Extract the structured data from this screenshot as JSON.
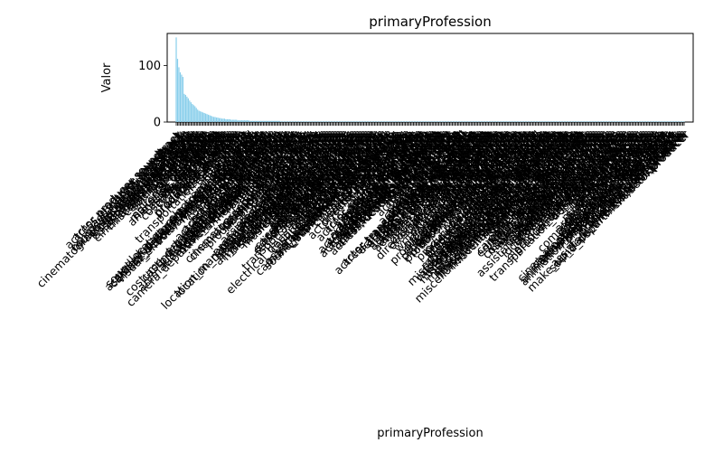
{
  "chart_data": {
    "type": "bar",
    "title": "primaryProfession",
    "xlabel": "primaryProfession",
    "ylabel": "Valor",
    "ylim": [
      0,
      157
    ],
    "yticks": [
      0,
      100
    ],
    "bar_color": "#87ceeb",
    "categories": [
      "actor,producer,soundtrack",
      "actress,producer,soundtrack",
      "actor,soundtrack",
      "actress,soundtrack",
      "actor,producer,director",
      "actor",
      "actress",
      "composer,music_department",
      "music_department,composer",
      "cinematographer,camera_department",
      "cinematographer,director",
      "cinematographer,editor",
      "cinematographer",
      "location_management",
      "assistant_director,director",
      "assistant_director",
      "music_department",
      "cinematographer,producer",
      "miscellaneous,producer",
      "producer",
      "camera_department",
      "sound_department",
      "visual_effects",
      "miscellaneous",
      "actor,director",
      "actress,director",
      "composer",
      "editor",
      "editorial_department",
      "make_up_department",
      "assistant",
      "animation_department",
      "art_department",
      "art_director",
      "casting_department",
      "casting_director",
      "costume_department",
      "costume_designer",
      "director",
      "director,writer",
      "producer,writer",
      "writer",
      "writer,producer",
      "production_designer",
      "production_manager",
      "script_department",
      "set_decorator",
      "special_effects",
      "stunts",
      "transportation_department",
      "talent_agent",
      "publicist",
      "executive",
      "manager",
      "legal",
      "music_artist",
      "soundtrack",
      "archive_footage",
      "electrical_department",
      "location_management,producer",
      "sound_department,music_department",
      "make_up_department,miscellaneous",
      "assistant_director,production_manager",
      "camera_department,cinematographer",
      "editor,editorial_department",
      "visual_effects,animation_department",
      "miscellaneous,actor",
      "miscellaneous,actress",
      "producer,director",
      "director,producer",
      "writer,director",
      "composer,soundtrack",
      "actor,writer",
      "actress,writer",
      "actor,miscellaneous",
      "actress,miscellaneous",
      "actor,music_department",
      "actress,music_department",
      "stunts,actor",
      "stunts,actress",
      "art_department,set_decorator",
      "costume_department,costume_designer",
      "casting_director,casting_department",
      "production_designer,art_director",
      "special_effects,visual_effects",
      "script_department,writer",
      "editorial_department,editor",
      "animation_department,art_department",
      "sound_department,composer",
      "music_department,soundtrack",
      "camera_department,electrical_department",
      "producer,executive",
      "manager,talent_agent",
      "publicist,executive",
      "legal,executive",
      "director,actor",
      "director,actress",
      "writer,actor",
      "writer,actress",
      "soundtrack,actor",
      "soundtrack,actress",
      "cinematographer,miscellaneous",
      "cinematographer,visual_effects",
      "cinematographer,writer",
      "producer,miscellaneous",
      "producer,music_department",
      "producer,soundtrack",
      "editor,director",
      "editor,producer",
      "editor,writer",
      "composer,actor",
      "composer,director",
      "composer,producer",
      "assistant_director,producer",
      "assistant_director,writer",
      "assistant_director,actor",
      "production_manager,producer",
      "production_manager,director",
      "location_management,production_manager",
      "location_management,assistant_director",
      "visual_effects,director",
      "visual_effects,producer",
      "animation_department,director",
      "animation_department,writer",
      "art_department,director",
      "art_director,production_designer",
      "make_up_department,actress",
      "make_up_department,producer",
      "costume_designer,actress",
      "sound_department,producer",
      "sound_department,director",
      "music_department,actor",
      "music_department,producer",
      "miscellaneous,writer",
      "miscellaneous,director",
      "actor,producer,writer",
      "actress,producer,writer",
      "actor,director,writer",
      "actress,director,writer",
      "director,writer,producer",
      "producer,director,writer",
      "writer,producer,director",
      "camera_department,actor",
      "camera_department,director",
      "editorial_department,director",
      "script_department,director",
      "set_decorator,art_department",
      "special_effects,director",
      "stunts,director",
      "transportation_department,stunts",
      "talent_agent,producer",
      "executive,producer",
      "soundtrack,composer",
      "archive_footage,actor",
      "archive_footage,actress",
      "electrical_department,cinematographer",
      "assistant,producer",
      "casting_department,producer",
      "music_artist,soundtrack",
      "actor,archive_footage",
      "actress,archive_footage",
      "make_up_department,actor",
      "assistant_director,miscellaneous",
      "camera_department,miscellaneous",
      "art_department,miscellaneous",
      "sound_department,miscellaneous",
      "visual_effects,miscellaneous",
      "producer,actor",
      "producer,actress",
      "cinematographer,actor",
      "composer,writer",
      "editor,actor",
      "editor,miscellaneous",
      "writer,miscellaneous",
      "director,miscellaneous",
      "actor,camera_department",
      "actor,stunts",
      "actress,stunts",
      "actor,composer",
      "actress,composer",
      "actor,editor",
      "actress,editor",
      "actor,sound_department",
      "actress,sound_department",
      "actor,visual_effects",
      "actress,visual_effects",
      "actor,art_department",
      "actress,art_department",
      "actor,casting_director",
      "actress,casting_director",
      "actor,costume_designer",
      "actress,costume_designer",
      "actor,make_up_department",
      "actress,make_up_department",
      "actor,script_department",
      "actress,script_department",
      "actor,animation_department",
      "actress,animation_department",
      "actor,assistant_director",
      "actress,assistant_director",
      "actor,production_manager",
      "actress,production_manager",
      "actor,location_management",
      "actress,location_management",
      "actor,executive",
      "actress,executive",
      "actor,manager",
      "actress,manager",
      "actor,talent_agent",
      "actress,talent_agent",
      "actor,publicist",
      "actress,publicist",
      "actor,legal",
      "actress,legal",
      "actor,music_artist",
      "actress,music_artist",
      "actor,special_effects",
      "actress,special_effects",
      "actor,set_decorator",
      "actress,set_decorator",
      "actor,transportation_department",
      "actress,transportation_department",
      "actor,electrical_department",
      "actress,electrical_department",
      "actor,production_designer",
      "actress,production_designer",
      "actor,art_director",
      "actress,art_director",
      "actor,editorial_department",
      "actress,editorial_department",
      "actor,casting_department",
      "actress,casting_department",
      "actor,costume_department",
      "actress,costume_department",
      "actor,assistant",
      "actress,assistant",
      "director,cinematographer",
      "director,editor",
      "director,composer",
      "director,sound_department",
      "director,visual_effects",
      "director,animation_department",
      "director,art_department",
      "director,camera_department",
      "writer,editor",
      "writer,composer",
      "writer,cinematographer",
      "writer,sound_department",
      "writer,visual_effects",
      "writer,animation_department",
      "producer,editor",
      "producer,composer",
      "producer,cinematographer",
      "producer,sound_department",
      "producer,visual_effects",
      "producer,animation_department",
      "producer,art_department",
      "producer,camera_department",
      "producer,casting_director",
      "producer,costume_designer",
      "producer,make_up_department",
      "producer,script_department",
      "producer,assistant_director",
      "producer,production_manager",
      "producer,location_management",
      "producer,manager",
      "producer,talent_agent",
      "producer,publicist",
      "producer,legal",
      "producer,stunts",
      "producer,special_effects",
      "producer,set_decorator",
      "producer,electrical_department",
      "producer,production_designer",
      "producer,art_director",
      "producer,editorial_department",
      "producer,casting_department",
      "producer,costume_department",
      "producer,assistant",
      "miscellaneous,editor",
      "miscellaneous,composer",
      "miscellaneous,cinematographer",
      "miscellaneous,sound_department",
      "miscellaneous,visual_effects",
      "miscellaneous,animation_department",
      "miscellaneous,art_department",
      "miscellaneous,camera_department",
      "miscellaneous,make_up_department",
      "miscellaneous,script_department",
      "miscellaneous,assistant_director",
      "miscellaneous,production_manager",
      "miscellaneous,location_management",
      "miscellaneous,stunts",
      "miscellaneous,special_effects",
      "miscellaneous,set_decorator",
      "miscellaneous,electrical_department",
      "miscellaneous,production_designer",
      "miscellaneous,art_director",
      "miscellaneous,editorial_department",
      "miscellaneous,casting_department",
      "miscellaneous,costume_department",
      "miscellaneous,assistant",
      "miscellaneous,transportation_department",
      "miscellaneous,music_department",
      "miscellaneous,soundtrack",
      "sound_department,actor",
      "sound_department,editor",
      "sound_department,writer",
      "visual_effects,actor",
      "visual_effects,editor",
      "visual_effects,writer",
      "camera_department,editor",
      "camera_department,producer",
      "camera_department,writer",
      "editorial_department,producer",
      "editorial_department,writer",
      "art_department,producer",
      "art_department,writer",
      "art_department,actor",
      "costume_department,actress",
      "costume_department,producer",
      "make_up_department,director",
      "make_up_department,writer",
      "script_department,producer",
      "script_department,actor",
      "casting_director,producer",
      "casting_director,actress",
      "casting_department,actress",
      "assistant_director,editor",
      "assistant_director,cinematographer",
      "production_manager,writer",
      "production_manager,actor",
      "location_management,actor",
      "location_management,director",
      "stunts,producer",
      "stunts,miscellaneous",
      "special_effects,producer",
      "special_effects,actor",
      "set_decorator,producer",
      "electrical_department,producer",
      "production_designer,producer",
      "art_director,producer",
      "transportation_department,producer",
      "assistant,actor",
      "assistant,actress",
      "executive,writer",
      "manager,producer",
      "talent_agent,actor",
      "publicist,producer",
      "legal,producer",
      "music_artist,actor",
      "music_artist,producer",
      "soundtrack,producer",
      "soundtrack,writer",
      "archive_footage,director",
      "archive_footage,writer",
      "composer,sound_department",
      "composer,editor",
      "composer,miscellaneous",
      "editor,sound_department",
      "editor,visual_effects",
      "editor,cinematographer",
      "editor,camera_department",
      "cinematographer,sound_department",
      "cinematographer,art_department",
      "animation_department,producer",
      "animation_department,visual_effects",
      "animation_department,actor",
      "animation_department,miscellaneous",
      "director,music_department",
      "director,soundtrack",
      "writer,music_department",
      "writer,soundtrack",
      "producer,actor,director",
      "producer,actress,director",
      "director,producer,actor",
      "writer,actor,producer",
      "assistant_director,actor,producer",
      "make_up_department,actress,producer",
      "sound_department,actor,producer"
    ],
    "values": [
      150,
      112,
      97,
      88,
      84,
      80,
      50,
      48,
      45,
      42,
      38,
      35,
      32,
      30,
      28,
      25,
      22,
      20,
      19,
      18,
      17,
      16,
      15,
      14,
      13,
      12,
      11,
      10,
      9,
      9,
      8,
      8,
      7,
      7,
      6,
      6,
      6,
      5,
      5,
      5,
      5,
      4,
      4,
      4,
      4,
      4,
      3,
      3,
      3,
      3,
      3,
      3,
      3,
      3,
      3,
      2,
      2,
      2,
      2,
      2,
      2,
      2,
      2,
      2,
      2,
      2,
      2,
      2,
      2,
      2,
      2,
      2,
      2,
      2,
      2,
      2,
      2,
      2,
      1,
      1,
      1,
      1,
      1,
      1,
      1,
      1,
      1,
      1,
      1,
      1,
      1,
      1,
      1,
      1,
      1,
      1,
      1,
      1,
      1,
      1,
      1,
      1,
      1,
      1,
      1,
      1,
      1,
      1,
      1,
      1,
      1,
      1,
      1,
      1,
      1,
      1,
      1,
      1,
      1,
      1,
      1,
      1,
      1,
      1,
      1,
      1,
      1,
      1,
      1,
      1,
      1,
      1,
      1,
      1,
      1,
      1,
      1,
      1,
      1,
      1,
      1,
      1,
      1,
      1,
      1,
      1,
      1,
      1,
      1,
      1,
      1,
      1,
      1,
      1,
      1,
      1,
      1,
      1,
      1,
      1,
      1,
      1,
      1,
      1,
      1,
      1,
      1,
      1,
      1,
      1,
      1,
      1,
      1,
      1,
      1,
      1,
      1,
      1,
      1,
      1,
      1,
      1,
      1,
      1,
      1,
      1,
      1,
      1,
      1,
      1,
      1,
      1,
      1,
      1,
      1,
      1,
      1,
      1,
      1,
      1,
      1,
      1,
      1,
      1,
      1,
      1,
      1,
      1,
      1,
      1,
      1,
      1,
      1,
      1,
      1,
      1,
      1,
      1,
      1,
      1,
      1,
      1,
      1,
      1,
      1,
      1,
      1,
      1,
      1,
      1,
      1,
      1,
      1,
      1,
      1,
      1,
      1,
      1,
      1,
      1,
      1,
      1,
      1,
      1,
      1,
      1,
      1,
      1,
      1,
      1,
      1,
      1,
      1,
      1,
      1,
      1,
      1,
      1,
      1,
      1,
      1,
      1,
      1,
      1,
      1,
      1,
      1,
      1,
      1,
      1,
      1,
      1,
      1,
      1,
      1,
      1,
      1,
      1,
      1,
      1,
      1,
      1,
      1,
      1,
      1,
      1,
      1,
      1,
      1,
      1,
      1,
      1,
      1,
      1,
      1,
      1,
      1,
      1,
      1,
      1,
      1,
      1,
      1,
      1,
      1,
      1,
      1,
      1,
      1,
      1,
      1,
      1,
      1,
      1,
      1,
      1,
      1,
      1,
      1,
      1,
      1,
      1,
      1,
      1,
      1,
      1,
      1,
      1,
      1,
      1,
      1,
      1,
      1,
      1,
      1,
      1,
      1,
      1,
      1,
      1,
      1,
      1,
      1,
      1,
      1,
      1,
      1,
      1,
      1,
      1,
      1,
      1,
      1,
      1,
      1,
      1,
      1,
      1,
      1,
      1,
      1,
      1,
      1,
      1,
      1,
      1,
      1,
      1,
      1,
      1,
      1,
      1,
      1,
      1,
      1,
      1,
      1,
      1,
      1,
      1
    ]
  }
}
